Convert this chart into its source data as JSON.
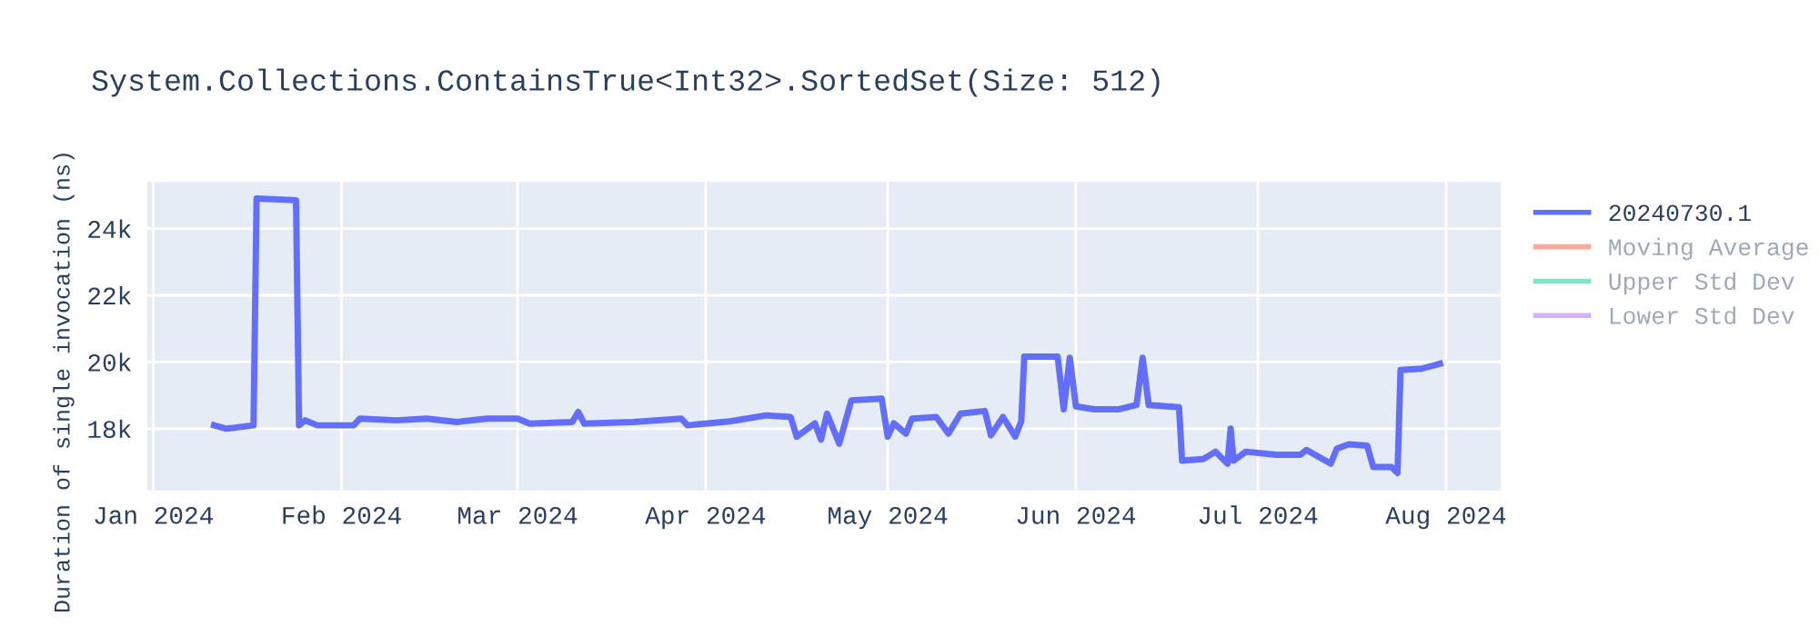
{
  "chart_data": {
    "type": "line",
    "title": "System.Collections.ContainsTrue<Int32>.SortedSet(Size: 512)",
    "ylabel": "Duration of single invocation (ns)",
    "xlim": [
      "2023-12-31",
      "2024-08-10"
    ],
    "ylim": [
      16150,
      25400
    ],
    "xticks": [
      {
        "value": "2024-01-01",
        "label": "Jan 2024"
      },
      {
        "value": "2024-02-01",
        "label": "Feb 2024"
      },
      {
        "value": "2024-03-01",
        "label": "Mar 2024"
      },
      {
        "value": "2024-04-01",
        "label": "Apr 2024"
      },
      {
        "value": "2024-05-01",
        "label": "May 2024"
      },
      {
        "value": "2024-06-01",
        "label": "Jun 2024"
      },
      {
        "value": "2024-07-01",
        "label": "Jul 2024"
      },
      {
        "value": "2024-08-01",
        "label": "Aug 2024"
      }
    ],
    "yticks": [
      {
        "value": 18000,
        "label": "18k"
      },
      {
        "value": 20000,
        "label": "20k"
      },
      {
        "value": 22000,
        "label": "22k"
      },
      {
        "value": 24000,
        "label": "24k"
      }
    ],
    "grid": true,
    "legend": "right",
    "marker": "none",
    "line_style": "solid",
    "series": [
      {
        "name": "20240730.1",
        "color": "#636efa",
        "x": [
          "2024-01-11",
          "2024-01-13",
          "2024-01-17T12:00",
          "2024-01-18",
          "2024-01-24T12:00",
          "2024-01-25",
          "2024-01-26",
          "2024-01-28",
          "2024-02-03",
          "2024-02-04",
          "2024-02-10",
          "2024-02-15",
          "2024-02-20",
          "2024-02-25",
          "2024-03-01",
          "2024-03-03",
          "2024-03-10",
          "2024-03-11",
          "2024-03-12",
          "2024-03-20",
          "2024-03-28",
          "2024-03-29",
          "2024-04-05",
          "2024-04-11",
          "2024-04-15",
          "2024-04-16",
          "2024-04-19",
          "2024-04-20",
          "2024-04-21",
          "2024-04-23",
          "2024-04-25",
          "2024-04-30",
          "2024-05-01",
          "2024-05-02",
          "2024-05-04",
          "2024-05-05",
          "2024-05-09",
          "2024-05-11",
          "2024-05-13",
          "2024-05-17",
          "2024-05-18",
          "2024-05-20",
          "2024-05-22",
          "2024-05-23",
          "2024-05-23T12:00",
          "2024-05-29",
          "2024-05-30",
          "2024-05-31",
          "2024-06-01",
          "2024-06-04",
          "2024-06-08",
          "2024-06-11",
          "2024-06-12",
          "2024-06-13",
          "2024-06-18",
          "2024-06-18T12:00",
          "2024-06-22",
          "2024-06-24",
          "2024-06-26",
          "2024-06-26T12:00",
          "2024-06-27",
          "2024-06-29",
          "2024-07-04",
          "2024-07-08",
          "2024-07-09",
          "2024-07-13",
          "2024-07-14",
          "2024-07-16",
          "2024-07-19",
          "2024-07-20",
          "2024-07-23",
          "2024-07-24",
          "2024-07-24T12:00",
          "2024-07-28",
          "2024-07-31"
        ],
        "values": [
          18100,
          18000,
          18100,
          24900,
          24850,
          18100,
          18250,
          18100,
          18100,
          18300,
          18250,
          18300,
          18200,
          18300,
          18300,
          18150,
          18200,
          18500,
          18150,
          18200,
          18300,
          18100,
          18220,
          18400,
          18350,
          17760,
          18160,
          17670,
          18450,
          17550,
          18850,
          18900,
          17760,
          18160,
          17850,
          18300,
          18350,
          17850,
          18450,
          18530,
          17800,
          18350,
          17760,
          18220,
          20160,
          20160,
          18580,
          20130,
          18670,
          18580,
          18580,
          18710,
          20130,
          18710,
          18640,
          17040,
          17090,
          17310,
          16950,
          18000,
          17040,
          17310,
          17220,
          17220,
          17360,
          16950,
          17400,
          17530,
          17490,
          16850,
          16850,
          16670,
          19760,
          19800,
          19950
        ]
      },
      {
        "name": "Moving Average",
        "color": "#ef553b"
      },
      {
        "name": "Upper Std Dev",
        "color": "#00cc96"
      },
      {
        "name": "Lower Std Dev",
        "color": "#ab63fa"
      }
    ]
  }
}
